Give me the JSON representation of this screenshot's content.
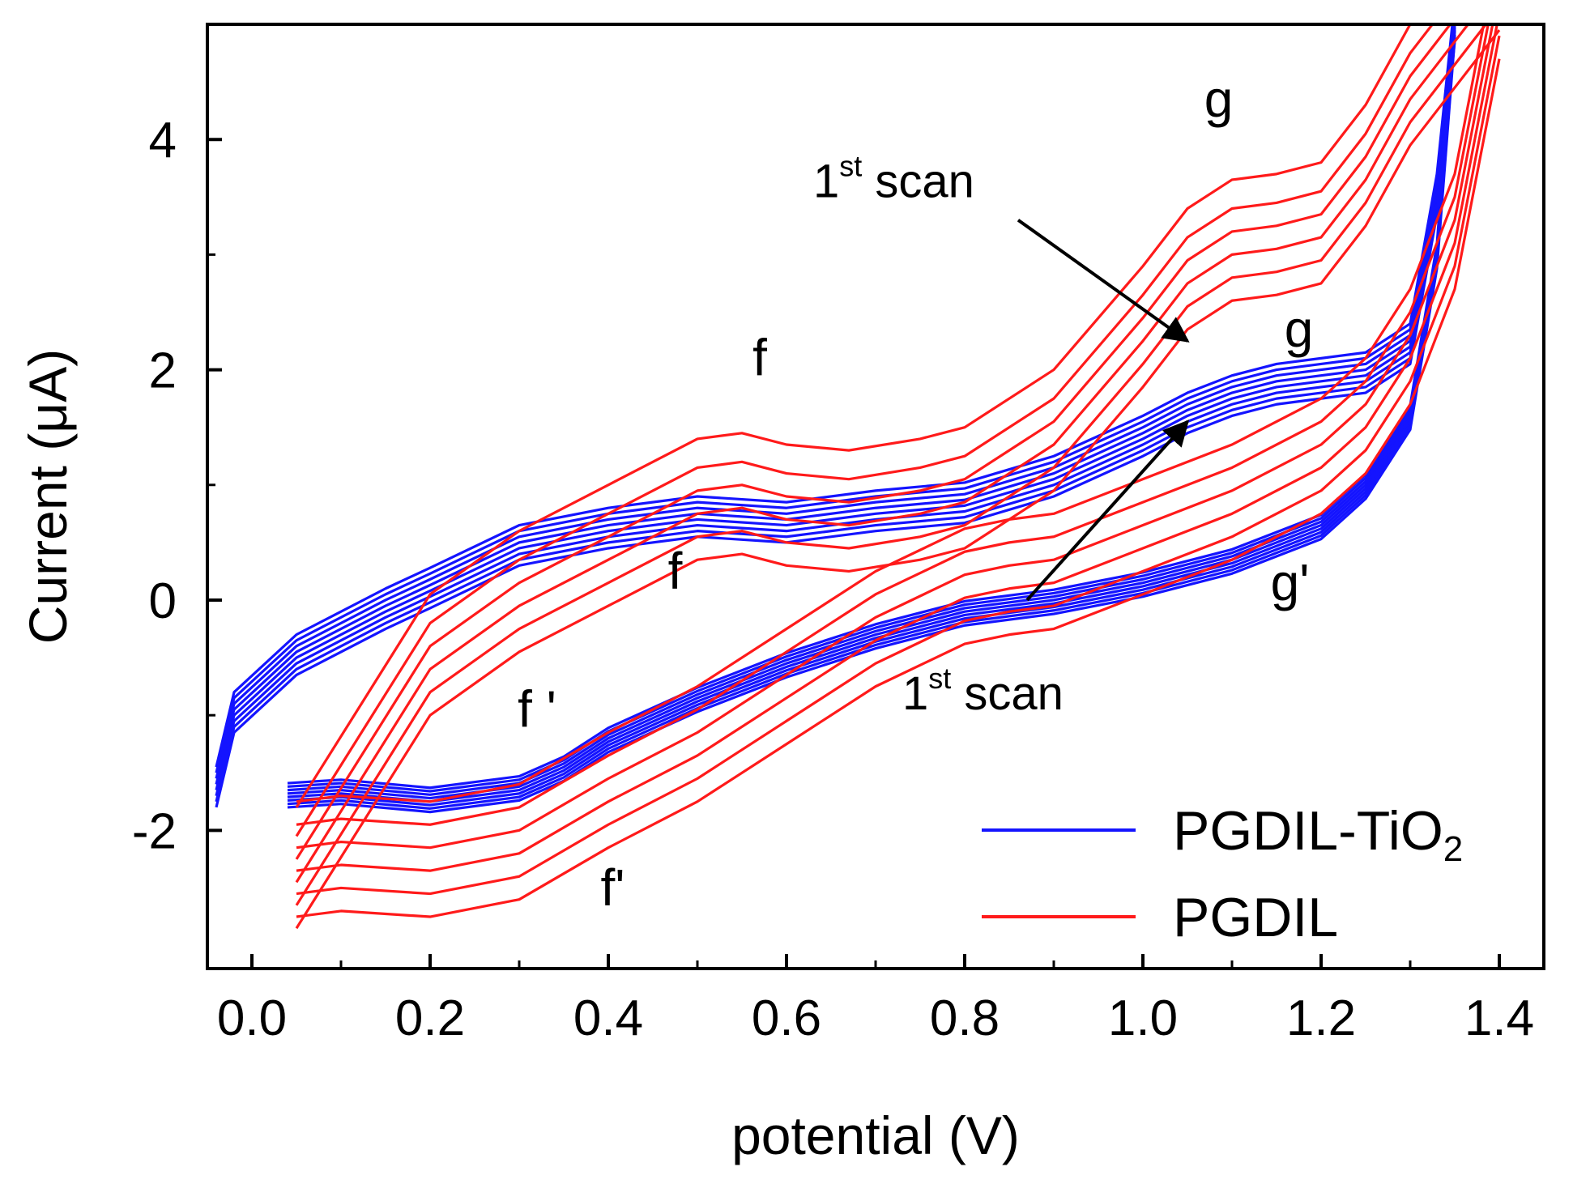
{
  "chart_data": {
    "type": "line",
    "title": "",
    "xlabel": "potential  (V)",
    "ylabel": "Current (μA)",
    "xlim": [
      -0.05,
      1.45
    ],
    "ylim": [
      -3.2,
      5.0
    ],
    "xticks": [
      0.0,
      0.2,
      0.4,
      0.6,
      0.8,
      1.0,
      1.2,
      1.4
    ],
    "xtick_labels": [
      "0.0",
      "0.2",
      "0.4",
      "0.6",
      "0.8",
      "1.0",
      "1.2",
      "1.4"
    ],
    "yticks": [
      -2,
      0,
      2,
      4
    ],
    "ytick_labels": [
      "-2",
      "0",
      "2",
      "4"
    ],
    "grid": false,
    "legend_position": "bottom-right",
    "series": [
      {
        "name": "PGDIL-TiO2",
        "legend_main": "PGDIL-TiO",
        "legend_sub": "2",
        "color": "#1414ff",
        "cycles": 8,
        "forward": {
          "x": [
            -0.04,
            -0.02,
            0.05,
            0.15,
            0.2,
            0.3,
            0.4,
            0.5,
            0.6,
            0.7,
            0.8,
            0.9,
            1.0,
            1.05,
            1.1,
            1.15,
            1.2,
            1.25,
            1.3,
            1.33,
            1.35
          ],
          "y": [
            -1.65,
            -1.0,
            -0.5,
            -0.1,
            0.08,
            0.45,
            0.6,
            0.7,
            0.65,
            0.75,
            0.82,
            1.05,
            1.4,
            1.6,
            1.75,
            1.85,
            1.9,
            1.95,
            2.2,
            3.5,
            5.0
          ]
        },
        "reverse": {
          "x": [
            1.35,
            1.33,
            1.3,
            1.25,
            1.2,
            1.1,
            1.0,
            0.9,
            0.8,
            0.7,
            0.6,
            0.5,
            0.4,
            0.35,
            0.3,
            0.2,
            0.1,
            0.04
          ],
          "y": [
            5.0,
            3.0,
            1.6,
            1.0,
            0.65,
            0.35,
            0.15,
            0.0,
            -0.1,
            -0.3,
            -0.55,
            -0.85,
            -1.2,
            -1.45,
            -1.62,
            -1.72,
            -1.65,
            -1.68
          ]
        },
        "forward_shift": [
          0.2,
          0.15,
          0.1,
          0.05,
          0.0,
          -0.05,
          -0.1,
          -0.15
        ],
        "reverse_shift": [
          -0.12,
          -0.09,
          -0.06,
          -0.03,
          0.0,
          0.03,
          0.06,
          0.09
        ]
      },
      {
        "name": "PGDIL",
        "legend_main": "PGDIL",
        "legend_sub": "",
        "color": "#ff1a1a",
        "cycles": 6,
        "forward": {
          "x": [
            0.05,
            0.2,
            0.3,
            0.4,
            0.5,
            0.55,
            0.6,
            0.67,
            0.75,
            0.8,
            0.9,
            1.0,
            1.05,
            1.1,
            1.15,
            1.2,
            1.25,
            1.3,
            1.35,
            1.4
          ],
          "y": [
            -1.8,
            0.05,
            0.6,
            1.0,
            1.4,
            1.45,
            1.35,
            1.3,
            1.4,
            1.5,
            2.0,
            2.9,
            3.4,
            3.65,
            3.7,
            3.8,
            4.3,
            5.0,
            5.5,
            6.0
          ]
        },
        "reverse": {
          "x": [
            1.4,
            1.35,
            1.3,
            1.25,
            1.2,
            1.1,
            1.0,
            0.9,
            0.85,
            0.8,
            0.7,
            0.6,
            0.5,
            0.4,
            0.3,
            0.2,
            0.1,
            0.05
          ],
          "y": [
            5.0,
            3.0,
            2.0,
            1.4,
            1.05,
            0.65,
            0.35,
            0.05,
            0.0,
            -0.08,
            -0.45,
            -0.95,
            -1.45,
            -1.85,
            -2.3,
            -2.45,
            -2.4,
            -2.45
          ]
        },
        "forward_shift": [
          -1.05,
          -0.85,
          -0.65,
          -0.45,
          -0.25,
          0.0
        ],
        "reverse_shift": [
          0.7,
          0.5,
          0.3,
          0.1,
          -0.1,
          -0.3
        ]
      }
    ],
    "annotations": [
      {
        "text": "g",
        "x": 1.085,
        "y": 4.2
      },
      {
        "text": "g",
        "x": 1.175,
        "y": 2.2
      },
      {
        "text": "f",
        "x": 0.57,
        "y": 1.95
      },
      {
        "text": "f",
        "x": 0.475,
        "y": 0.1
      },
      {
        "text": "f '",
        "x": 0.32,
        "y": -1.1
      },
      {
        "text": "f'",
        "x": 0.405,
        "y": -2.65
      },
      {
        "text": "g'",
        "x": 1.165,
        "y": 0.0
      }
    ],
    "arrows": [
      {
        "label_main": "1",
        "label_sup": "st",
        "label_rest": " scan",
        "label_x": 0.63,
        "label_y": 3.5,
        "from_x": 0.86,
        "from_y": 3.3,
        "to_x": 1.05,
        "to_y": 2.25
      },
      {
        "label_main": "1",
        "label_sup": "st",
        "label_rest": " scan",
        "label_x": 0.73,
        "label_y": -0.95,
        "from_x": 0.87,
        "from_y": 0.0,
        "to_x": 1.05,
        "to_y": 1.55
      }
    ]
  }
}
